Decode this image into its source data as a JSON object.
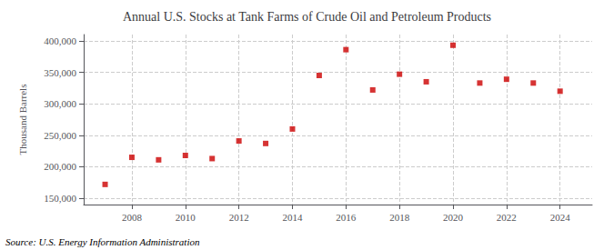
{
  "chart_data": {
    "type": "scatter",
    "title": "Annual U.S. Stocks at Tank Farms of Crude Oil and Petroleum Products",
    "ylabel": "Thousand Barrels",
    "annotations": [
      "Source: U.S. Energy Information Administration"
    ],
    "x": [
      2007,
      2008,
      2009,
      2010,
      2011,
      2012,
      2013,
      2014,
      2015,
      2016,
      2017,
      2018,
      2019,
      2020,
      2021,
      2022,
      2023,
      2024
    ],
    "values": [
      172000,
      215000,
      211000,
      218000,
      213000,
      241000,
      237000,
      260000,
      345000,
      386000,
      322000,
      347000,
      335000,
      393000,
      333000,
      339000,
      333000,
      320000
    ],
    "color": "#cc0000",
    "marker": "square",
    "xlim": [
      2006.2,
      2025.2
    ],
    "xticks": [
      2008,
      2010,
      2012,
      2014,
      2016,
      2018,
      2020,
      2022,
      2024
    ],
    "ylim": [
      140000,
      410000
    ],
    "yticks": [
      {
        "value": 150000,
        "label": "150,000"
      },
      {
        "value": 200000,
        "label": "200,000"
      },
      {
        "value": 250000,
        "label": "250,000"
      },
      {
        "value": 300000,
        "label": "300,000"
      },
      {
        "value": 350000,
        "label": "350,000"
      },
      {
        "value": 400000,
        "label": "400,000"
      }
    ],
    "grid": true
  }
}
